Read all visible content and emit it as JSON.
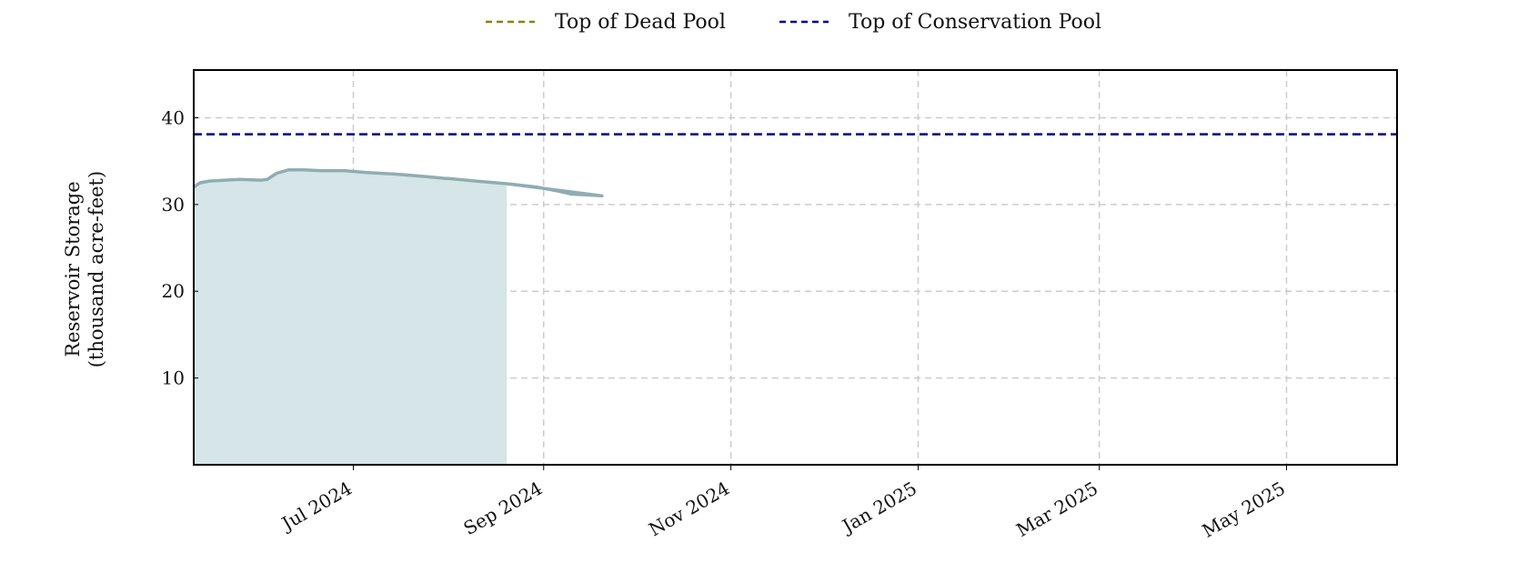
{
  "chart_data": {
    "type": "area",
    "ylabel_lines": [
      "Reservoir Storage",
      "(thousand acre-feet)"
    ],
    "x_domain": [
      "2024-05-10",
      "2025-06-06"
    ],
    "ylim": [
      0,
      45.5
    ],
    "yticks": [
      10,
      20,
      30,
      40
    ],
    "xticks": [
      {
        "date": "2024-07-01",
        "label": "Jul 2024"
      },
      {
        "date": "2024-09-01",
        "label": "Sep 2024"
      },
      {
        "date": "2024-11-01",
        "label": "Nov 2024"
      },
      {
        "date": "2025-01-01",
        "label": "Jan 2025"
      },
      {
        "date": "2025-03-01",
        "label": "Mar 2025"
      },
      {
        "date": "2025-05-01",
        "label": "May 2025"
      }
    ],
    "grid": true,
    "legend_position": "top-center",
    "legend": [
      {
        "label": "Top of Dead Pool",
        "color": "#8b8000",
        "style": "dashed"
      },
      {
        "label": "Top of Conservation Pool",
        "color": "#000080",
        "style": "dashed"
      }
    ],
    "reference_lines": [
      {
        "name": "Top of Conservation Pool",
        "y": 38.1,
        "color": "#000080",
        "style": "dashed"
      }
    ],
    "series": [
      {
        "line_color": "#8fadb2",
        "fill_color": "#d6e5e7",
        "points": [
          [
            "2024-05-10",
            32.0
          ],
          [
            "2024-05-12",
            32.5
          ],
          [
            "2024-05-15",
            32.7
          ],
          [
            "2024-05-20",
            32.8
          ],
          [
            "2024-05-25",
            32.9
          ],
          [
            "2024-06-01",
            32.8
          ],
          [
            "2024-06-03",
            32.9
          ],
          [
            "2024-06-06",
            33.6
          ],
          [
            "2024-06-10",
            34.0
          ],
          [
            "2024-06-15",
            34.0
          ],
          [
            "2024-06-20",
            33.9
          ],
          [
            "2024-06-28",
            33.9
          ],
          [
            "2024-07-05",
            33.7
          ],
          [
            "2024-07-15",
            33.5
          ],
          [
            "2024-07-25",
            33.2
          ],
          [
            "2024-07-31",
            33.0
          ],
          [
            "2024-08-01",
            33.0
          ],
          [
            "2024-08-10",
            32.7
          ],
          [
            "2024-08-20",
            32.4
          ],
          [
            "2024-08-30",
            32.0
          ],
          [
            "2024-09-05",
            31.6
          ],
          [
            "2024-09-10",
            31.2
          ],
          [
            "2024-09-20",
            31.0
          ],
          [
            "2024-08-20",
            32.4
          ]
        ]
      }
    ]
  }
}
